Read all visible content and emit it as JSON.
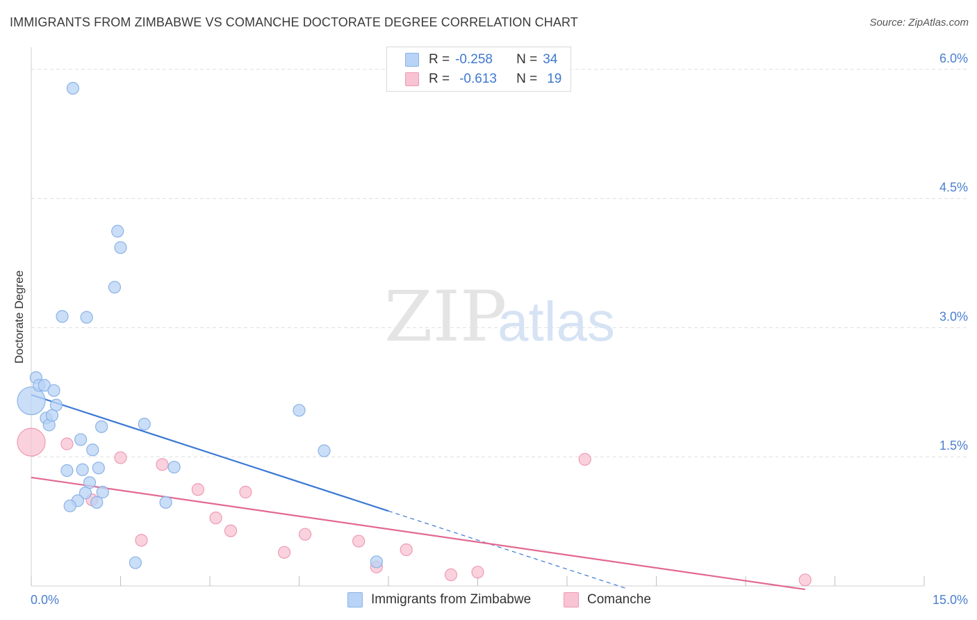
{
  "header": {
    "title": "IMMIGRANTS FROM ZIMBABWE VS COMANCHE DOCTORATE DEGREE CORRELATION CHART",
    "source": "Source: ZipAtlas.com"
  },
  "watermark": {
    "zip": "ZIP",
    "atlas": "atlas"
  },
  "legend": {
    "row1": {
      "r_label": "R =",
      "r_value": "-0.258",
      "n_label": "N =",
      "n_value": "34"
    },
    "row2": {
      "r_label": "R =",
      "r_value": "-0.613",
      "n_label": "N =",
      "n_value": "19"
    }
  },
  "colors": {
    "blue_fill": "#b8d3f5",
    "blue_stroke": "#8ab2e6",
    "blue_line": "#3a78d4",
    "pink_fill": "#f8c3d3",
    "pink_stroke": "#ee9ab4",
    "pink_line": "#e2688f",
    "grid": "#dedede",
    "axis_text": "#4a7fd0"
  },
  "chart_data": {
    "type": "scatter",
    "title": "IMMIGRANTS FROM ZIMBABWE VS COMANCHE DOCTORATE DEGREE CORRELATION CHART",
    "xlabel": "",
    "ylabel": "Doctorate Degree",
    "xlim": [
      0,
      15
    ],
    "ylim": [
      0,
      6.2
    ],
    "x_tick_labels": [
      "0.0%",
      "15.0%"
    ],
    "y_ticks": [
      1.5,
      3.0,
      4.5,
      6.0
    ],
    "y_tick_labels": [
      "1.5%",
      "3.0%",
      "4.5%",
      "6.0%"
    ],
    "grid": true,
    "legend_position": "top-center",
    "series": [
      {
        "name": "Immigrants from Zimbabwe",
        "color": "#b8d3f5",
        "points": [
          {
            "x": 0.0,
            "y": 2.15,
            "size": "large"
          },
          {
            "x": 0.08,
            "y": 2.42
          },
          {
            "x": 0.13,
            "y": 2.33
          },
          {
            "x": 0.22,
            "y": 2.33
          },
          {
            "x": 0.38,
            "y": 2.27
          },
          {
            "x": 0.42,
            "y": 2.1
          },
          {
            "x": 0.25,
            "y": 1.95
          },
          {
            "x": 0.3,
            "y": 1.87
          },
          {
            "x": 0.35,
            "y": 1.98
          },
          {
            "x": 0.7,
            "y": 5.78
          },
          {
            "x": 1.45,
            "y": 4.12
          },
          {
            "x": 1.5,
            "y": 3.93
          },
          {
            "x": 1.4,
            "y": 3.47
          },
          {
            "x": 0.52,
            "y": 3.13
          },
          {
            "x": 0.93,
            "y": 3.12
          },
          {
            "x": 0.83,
            "y": 1.7
          },
          {
            "x": 1.18,
            "y": 1.85
          },
          {
            "x": 1.9,
            "y": 1.88
          },
          {
            "x": 1.03,
            "y": 1.58
          },
          {
            "x": 0.6,
            "y": 1.34
          },
          {
            "x": 0.86,
            "y": 1.35
          },
          {
            "x": 1.13,
            "y": 1.37
          },
          {
            "x": 2.4,
            "y": 1.38
          },
          {
            "x": 0.98,
            "y": 1.2
          },
          {
            "x": 1.2,
            "y": 1.09
          },
          {
            "x": 0.91,
            "y": 1.08
          },
          {
            "x": 0.78,
            "y": 0.99
          },
          {
            "x": 0.65,
            "y": 0.93
          },
          {
            "x": 1.1,
            "y": 0.97
          },
          {
            "x": 2.26,
            "y": 0.97
          },
          {
            "x": 4.5,
            "y": 2.04
          },
          {
            "x": 4.92,
            "y": 1.57
          },
          {
            "x": 1.75,
            "y": 0.27
          },
          {
            "x": 5.8,
            "y": 0.28
          }
        ]
      },
      {
        "name": "Comanche",
        "color": "#f8c3d3",
        "points": [
          {
            "x": 0.0,
            "y": 1.67,
            "size": "large"
          },
          {
            "x": 0.6,
            "y": 1.65
          },
          {
            "x": 1.5,
            "y": 1.49
          },
          {
            "x": 2.2,
            "y": 1.41
          },
          {
            "x": 2.8,
            "y": 1.12
          },
          {
            "x": 3.6,
            "y": 1.09
          },
          {
            "x": 1.02,
            "y": 1.0
          },
          {
            "x": 3.1,
            "y": 0.79
          },
          {
            "x": 3.35,
            "y": 0.64
          },
          {
            "x": 1.85,
            "y": 0.53
          },
          {
            "x": 4.6,
            "y": 0.6
          },
          {
            "x": 5.5,
            "y": 0.52
          },
          {
            "x": 4.25,
            "y": 0.39
          },
          {
            "x": 6.3,
            "y": 0.42
          },
          {
            "x": 5.8,
            "y": 0.22
          },
          {
            "x": 7.05,
            "y": 0.13
          },
          {
            "x": 7.5,
            "y": 0.16
          },
          {
            "x": 9.3,
            "y": 1.47
          },
          {
            "x": 13.0,
            "y": 0.07
          }
        ]
      }
    ],
    "trendlines": [
      {
        "series": "Immigrants from Zimbabwe",
        "x1": 0.0,
        "y1": 2.22,
        "x2": 6.0,
        "y2": 0.87,
        "dashed_to_x": 10.0,
        "dashed_to_y": -0.03
      },
      {
        "series": "Comanche",
        "x1": 0.0,
        "y1": 1.26,
        "x2": 13.0,
        "y2": -0.04
      }
    ]
  },
  "bottom_legend": {
    "items": [
      "Immigrants from Zimbabwe",
      "Comanche"
    ]
  }
}
